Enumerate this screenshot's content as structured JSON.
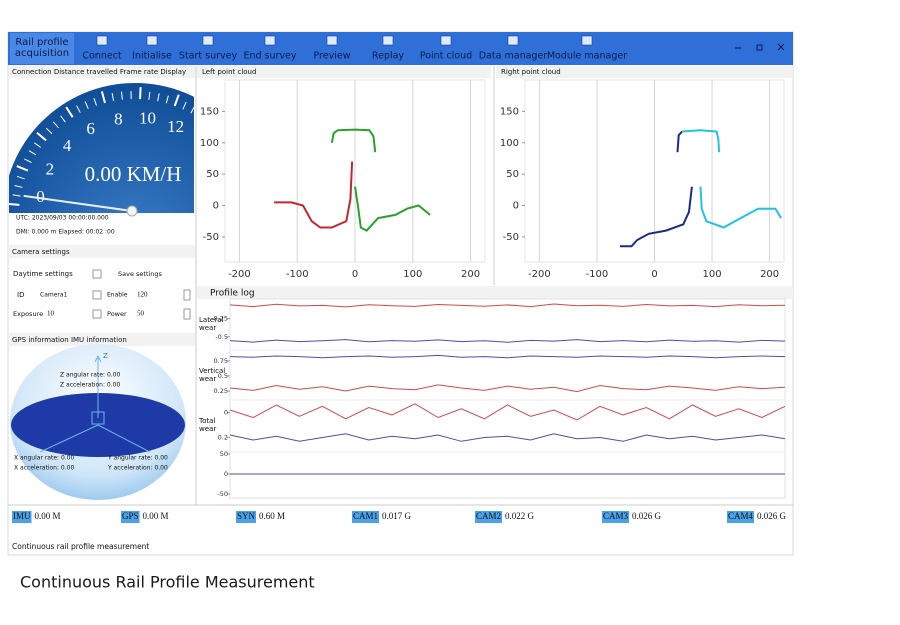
{
  "toolbar": {
    "app_title": "Rail profile acquisition",
    "buttons": [
      "Connect",
      "Initialise",
      "Start survey",
      "End survey",
      "Preview",
      "Replay",
      "Point cloud",
      "Data manager",
      "Module manager"
    ]
  },
  "speed_panel": {
    "title": "Connection Distance travelled Frame rate Display",
    "gauge_ticks": [
      0,
      2,
      4,
      6,
      8,
      10,
      12
    ],
    "speed": 0,
    "speed_text": "0.00 KM/H",
    "utc": "UTC: 2023/09/03 00:00:00.000",
    "dmi": "DMI: 0.000 m Elapsed: 00:02   :00"
  },
  "camera": {
    "title": "Camera settings",
    "daytime": "Daytime settings",
    "save": "Save settings",
    "id_label": "ID",
    "id_value": "Camera1",
    "enable_label": "Enable",
    "enable_value": "120",
    "exposure_label": "Exposure",
    "exposure_value": "10",
    "power_label": "Power",
    "power_value": "50"
  },
  "imu": {
    "title": "GPS information IMU information",
    "z_axis": "Z",
    "z_rate": "Z angular rate: 0.00",
    "z_acc": "Z acceleration: 0.00",
    "x_rate": "X angular rate: 0.00",
    "x_acc": "X acceleration: 0.00",
    "y_rate": "Y angular rate: 0.00",
    "y_acc": "Y acceleration: 0.00"
  },
  "left_cloud": {
    "type": "line",
    "title": "Left point cloud",
    "xlim": [
      -225,
      225
    ],
    "ylim": [
      -90,
      200
    ],
    "xticks": [
      -200,
      -100,
      0,
      100,
      200
    ],
    "yticks": [
      -50,
      0,
      50,
      100,
      150
    ],
    "grid": true,
    "series": [
      {
        "color": "#2ca02c",
        "x": [
          -40,
          -37,
          -30,
          0,
          25,
          32,
          35
        ],
        "y": [
          100,
          115,
          120,
          121,
          120,
          110,
          85
        ]
      },
      {
        "color": "#c0282d",
        "x": [
          -140,
          -110,
          -90,
          -75,
          -60,
          -40,
          -15,
          -8,
          -5
        ],
        "y": [
          5,
          5,
          0,
          -25,
          -35,
          -35,
          -25,
          10,
          70
        ]
      },
      {
        "color": "#2ca02c",
        "x": [
          0,
          5,
          10,
          20,
          40,
          70,
          90,
          110,
          130
        ],
        "y": [
          30,
          0,
          -35,
          -40,
          -20,
          -15,
          -5,
          0,
          -15
        ]
      }
    ]
  },
  "right_cloud": {
    "type": "line",
    "title": "Right point cloud",
    "xlim": [
      -225,
      225
    ],
    "ylim": [
      -90,
      200
    ],
    "xticks": [
      -200,
      -100,
      0,
      100,
      200
    ],
    "yticks": [
      -50,
      0,
      50,
      100,
      150
    ],
    "grid": true,
    "series": [
      {
        "color": "#1c2a8c",
        "x": [
          -60,
          -40,
          -30,
          -10,
          20,
          50,
          60,
          65
        ],
        "y": [
          -65,
          -65,
          -55,
          -45,
          -40,
          -30,
          -10,
          30
        ]
      },
      {
        "color": "#1c2a8c",
        "x": [
          40,
          42,
          48
        ],
        "y": [
          85,
          112,
          118
        ]
      },
      {
        "color": "#21c4dc",
        "x": [
          48,
          80,
          108,
          111,
          112
        ],
        "y": [
          118,
          120,
          118,
          105,
          85
        ]
      },
      {
        "color": "#21c4dc",
        "x": [
          80,
          82,
          90,
          120,
          160,
          180,
          210,
          220
        ],
        "y": [
          30,
          -5,
          -25,
          -35,
          -15,
          -5,
          -5,
          -20
        ]
      }
    ]
  },
  "profile_log": {
    "type": "line",
    "title": "Profile log",
    "panels": [
      {
        "label": "Lateral wear",
        "ylim": [
          -1.05,
          1.15
        ],
        "yticks": [
          -0.5,
          0.25
        ],
        "series": [
          {
            "color": "#d0494a",
            "values": [
              0.82,
              0.75,
              0.85,
              0.78,
              0.8,
              0.74,
              0.83,
              0.79,
              0.76,
              0.84,
              0.8,
              0.77,
              0.82,
              0.75,
              0.86,
              0.79,
              0.81,
              0.76,
              0.84,
              0.78,
              0.8,
              0.75,
              0.83,
              0.79,
              0.81
            ]
          },
          {
            "color": "#4a4fa8",
            "values": [
              -0.66,
              -0.72,
              -0.64,
              -0.7,
              -0.67,
              -0.62,
              -0.71,
              -0.66,
              -0.69,
              -0.63,
              -0.7,
              -0.67,
              -0.73,
              -0.65,
              -0.68,
              -0.62,
              -0.7,
              -0.66,
              -0.71,
              -0.64,
              -0.69,
              -0.67,
              -0.72,
              -0.65,
              -0.68
            ]
          }
        ]
      },
      {
        "label": "Vertical wear",
        "ylim": [
          0.1,
          0.93
        ],
        "yticks": [
          0.25,
          0.5,
          0.75
        ],
        "series": [
          {
            "color": "#4a4fa8",
            "values": [
              0.82,
              0.81,
              0.83,
              0.82,
              0.8,
              0.82,
              0.83,
              0.81,
              0.82,
              0.84,
              0.81,
              0.82,
              0.8,
              0.83,
              0.82,
              0.81,
              0.83,
              0.82,
              0.81,
              0.83,
              0.82,
              0.8,
              0.82,
              0.83,
              0.82
            ]
          },
          {
            "color": "#d0494a",
            "values": [
              0.3,
              0.26,
              0.34,
              0.28,
              0.32,
              0.25,
              0.33,
              0.29,
              0.27,
              0.35,
              0.3,
              0.26,
              0.33,
              0.28,
              0.31,
              0.24,
              0.34,
              0.29,
              0.27,
              0.33,
              0.3,
              0.26,
              0.32,
              0.29,
              0.31
            ]
          }
        ]
      },
      {
        "label": "Total wear",
        "ylim": [
          0.3,
          -0.1
        ],
        "yticks": [
          0,
          0.2
        ],
        "series": [
          {
            "color": "#d0494a",
            "values": [
              -0.02,
              0.04,
              -0.06,
              0.03,
              -0.05,
              0.05,
              -0.04,
              0.02,
              -0.07,
              0.04,
              -0.03,
              0.05,
              -0.06,
              0.03,
              -0.02,
              0.06,
              -0.05,
              0.02,
              -0.04,
              0.05,
              -0.06,
              0.03,
              -0.03,
              0.04,
              -0.05
            ]
          },
          {
            "color": "#4a4fa8",
            "values": [
              0.18,
              0.22,
              0.19,
              0.23,
              0.2,
              0.17,
              0.22,
              0.19,
              0.21,
              0.18,
              0.23,
              0.2,
              0.19,
              0.22,
              0.17,
              0.21,
              0.2,
              0.23,
              0.18,
              0.21,
              0.19,
              0.22,
              0.2,
              0.18,
              0.21
            ]
          }
        ]
      },
      {
        "ylim": [
          -55,
          55
        ],
        "yticks": [
          -50,
          0,
          50
        ],
        "series": [
          {
            "color": "#4a4fa8",
            "values": [
              0,
              0
            ]
          }
        ]
      }
    ]
  },
  "status": [
    {
      "label": "IMU",
      "value": "0.00 M"
    },
    {
      "label": "GPS",
      "value": "0.00 M"
    },
    {
      "label": "SYN",
      "value": "0.60 M"
    },
    {
      "label": "CAM1",
      "value": "0.017 G"
    },
    {
      "label": "CAM2",
      "value": "0.022 G"
    },
    {
      "label": "CAM3",
      "value": "0.026 G"
    },
    {
      "label": "CAM4",
      "value": "0.026 G"
    }
  ],
  "footer": "Continuous rail profile measurement",
  "caption": "Continuous Rail Profile Measurement"
}
